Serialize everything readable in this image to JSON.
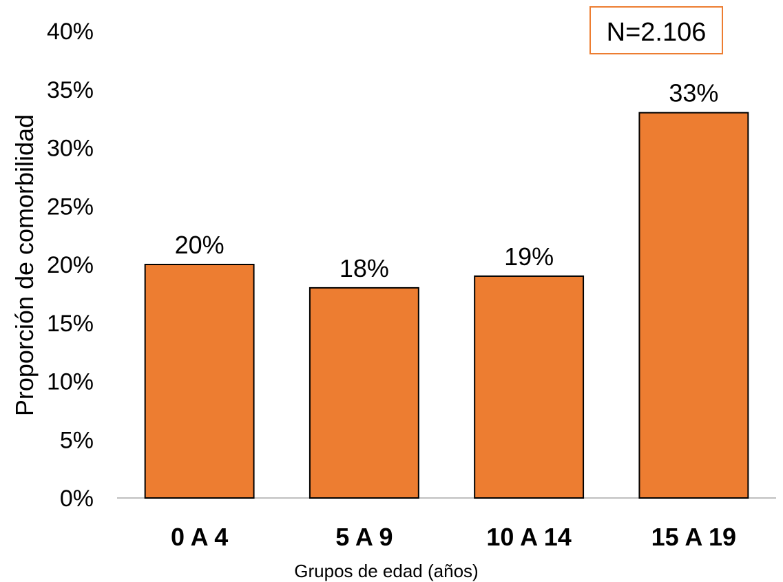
{
  "chart_data": {
    "type": "bar",
    "categories": [
      "0 A 4",
      "5 A 9",
      "10 A 14",
      "15 A 19"
    ],
    "values": [
      20,
      18,
      19,
      33
    ],
    "data_labels": [
      "20%",
      "18%",
      "19%",
      "33%"
    ],
    "ylabel": "Proporción de comorbilidad",
    "xlabel": "Grupos de edad (años)",
    "ylim": [
      0,
      40
    ],
    "yticks": [
      "0%",
      "5%",
      "10%",
      "15%",
      "20%",
      "25%",
      "30%",
      "35%",
      "40%"
    ],
    "annotation": "N=2.106",
    "grid": false,
    "colors": {
      "bar": "#ED7D31",
      "bar_edge": "#000000",
      "annotation_border": "#ED7D31",
      "axis": "#BFBFBF"
    }
  }
}
